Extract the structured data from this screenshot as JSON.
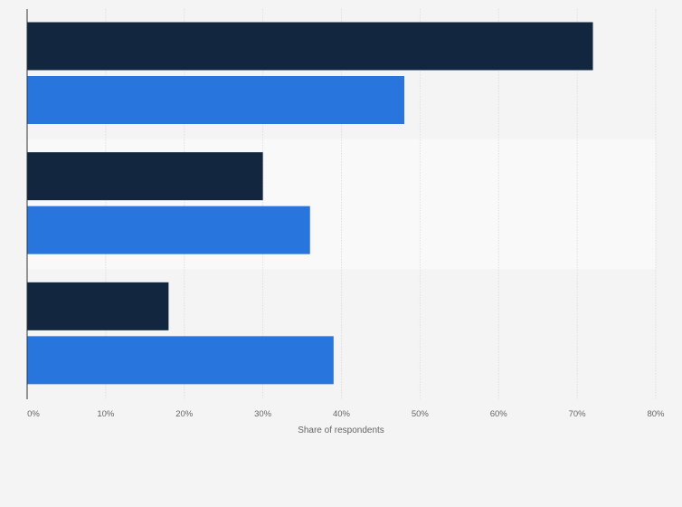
{
  "chart_data": {
    "type": "bar",
    "orientation": "horizontal",
    "categories": [
      "",
      "",
      ""
    ],
    "series": [
      {
        "values": [
          72,
          30,
          18
        ],
        "color": "#12263f"
      },
      {
        "values": [
          48,
          36,
          39
        ],
        "color": "#2876dd"
      }
    ],
    "xlim": [
      0,
      80
    ],
    "xticks": [
      "0%",
      "10%",
      "20%",
      "30%",
      "40%",
      "50%",
      "60%",
      "70%",
      "80%"
    ],
    "xlabel": "Share of respondents",
    "grid": true,
    "band_colors": [
      "#f4f4f4",
      "#f9f9f9",
      "#f4f4f4"
    ]
  }
}
